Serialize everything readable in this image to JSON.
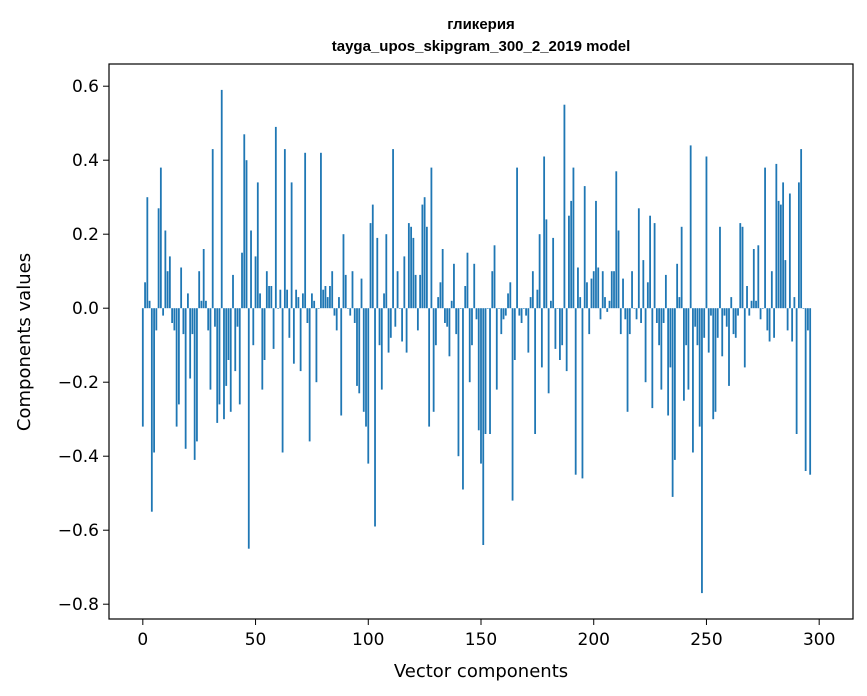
{
  "chart_data": {
    "type": "bar",
    "title": "гликерия",
    "subtitle": "tayga_upos_skipgram_300_2_2019 model",
    "xlabel": "Vector components",
    "ylabel": "Components values",
    "xlim": [
      -15,
      315
    ],
    "ylim": [
      -0.84,
      0.66
    ],
    "x_ticks": [
      0,
      50,
      100,
      150,
      200,
      250,
      300
    ],
    "x_tick_labels": [
      "0",
      "50",
      "100",
      "150",
      "200",
      "250",
      "300"
    ],
    "y_ticks": [
      -0.8,
      -0.6,
      -0.4,
      -0.2,
      0.0,
      0.2,
      0.4,
      0.6
    ],
    "y_tick_labels": [
      "−0.8",
      "−0.6",
      "−0.4",
      "−0.2",
      "0.0",
      "0.2",
      "0.4",
      "0.6"
    ],
    "bar_color": "#1f77b4",
    "grid": false,
    "values": [
      -0.32,
      0.07,
      0.3,
      0.02,
      -0.55,
      -0.39,
      -0.06,
      0.27,
      0.38,
      -0.02,
      0.21,
      0.1,
      0.14,
      -0.04,
      -0.06,
      -0.32,
      -0.26,
      0.11,
      -0.07,
      -0.38,
      0.04,
      -0.19,
      -0.07,
      -0.41,
      -0.36,
      0.1,
      0.02,
      0.16,
      0.02,
      -0.06,
      -0.22,
      0.43,
      -0.05,
      -0.31,
      -0.26,
      0.59,
      -0.3,
      -0.21,
      -0.14,
      -0.28,
      0.09,
      -0.17,
      -0.05,
      -0.26,
      0.15,
      0.47,
      0.4,
      -0.65,
      0.21,
      -0.1,
      0.14,
      0.34,
      0.04,
      -0.22,
      -0.14,
      0.1,
      0.06,
      0.06,
      -0.11,
      0.49,
      0.0,
      0.05,
      -0.39,
      0.43,
      0.05,
      -0.08,
      0.34,
      -0.15,
      0.05,
      0.03,
      -0.17,
      0.04,
      0.42,
      -0.04,
      -0.36,
      0.04,
      0.02,
      -0.2,
      0.0,
      0.42,
      0.05,
      0.06,
      0.03,
      0.06,
      0.1,
      -0.02,
      -0.06,
      0.03,
      -0.29,
      0.2,
      0.09,
      0.0,
      -0.02,
      0.1,
      -0.04,
      -0.21,
      -0.23,
      0.08,
      -0.28,
      -0.32,
      -0.42,
      0.23,
      0.28,
      -0.59,
      0.19,
      -0.1,
      -0.22,
      0.04,
      0.2,
      -0.12,
      -0.08,
      0.43,
      -0.05,
      0.1,
      0.0,
      -0.09,
      0.14,
      -0.12,
      0.23,
      0.22,
      0.19,
      0.09,
      -0.06,
      0.09,
      0.28,
      0.3,
      0.22,
      -0.32,
      0.38,
      -0.28,
      -0.1,
      0.03,
      0.07,
      0.16,
      -0.04,
      -0.05,
      -0.13,
      0.02,
      0.12,
      -0.07,
      -0.4,
      0.0,
      -0.49,
      0.06,
      0.15,
      -0.2,
      -0.1,
      0.12,
      -0.03,
      -0.33,
      -0.42,
      -0.64,
      -0.34,
      0.0,
      -0.34,
      0.1,
      0.17,
      -0.22,
      0.0,
      -0.07,
      -0.03,
      -0.02,
      0.04,
      0.07,
      -0.52,
      -0.14,
      0.38,
      -0.02,
      -0.04,
      0.0,
      -0.02,
      -0.12,
      0.03,
      0.1,
      -0.34,
      0.05,
      0.2,
      -0.16,
      0.41,
      0.24,
      -0.23,
      0.02,
      0.19,
      -0.11,
      0.0,
      -0.14,
      -0.1,
      0.55,
      -0.17,
      0.25,
      0.29,
      0.38,
      -0.45,
      0.11,
      0.03,
      -0.46,
      0.33,
      0.07,
      -0.07,
      0.08,
      0.1,
      0.29,
      0.11,
      -0.03,
      0.1,
      0.03,
      -0.01,
      0.02,
      0.1,
      0.1,
      0.37,
      0.21,
      -0.07,
      0.08,
      -0.03,
      -0.28,
      -0.07,
      0.1,
      0.0,
      -0.03,
      0.27,
      -0.04,
      0.13,
      -0.2,
      0.07,
      0.25,
      -0.27,
      0.23,
      -0.04,
      -0.1,
      -0.22,
      -0.04,
      0.09,
      -0.29,
      -0.16,
      -0.51,
      -0.41,
      0.12,
      0.03,
      0.22,
      -0.25,
      -0.1,
      -0.22,
      0.44,
      -0.39,
      -0.05,
      -0.1,
      -0.32,
      -0.77,
      -0.08,
      0.41,
      -0.12,
      -0.02,
      -0.3,
      -0.28,
      -0.08,
      0.22,
      -0.13,
      -0.02,
      -0.05,
      -0.21,
      0.03,
      -0.07,
      -0.08,
      -0.02,
      0.23,
      0.22,
      -0.16,
      0.06,
      -0.02,
      0.02,
      0.16,
      0.02,
      0.17,
      -0.03,
      0.0,
      0.38,
      -0.06,
      -0.09,
      0.1,
      -0.08,
      0.39,
      0.29,
      0.28,
      0.34,
      0.13,
      -0.06,
      0.31,
      -0.09,
      0.03,
      -0.34,
      0.34,
      0.43,
      0.0,
      -0.44,
      -0.06,
      -0.45
    ]
  }
}
